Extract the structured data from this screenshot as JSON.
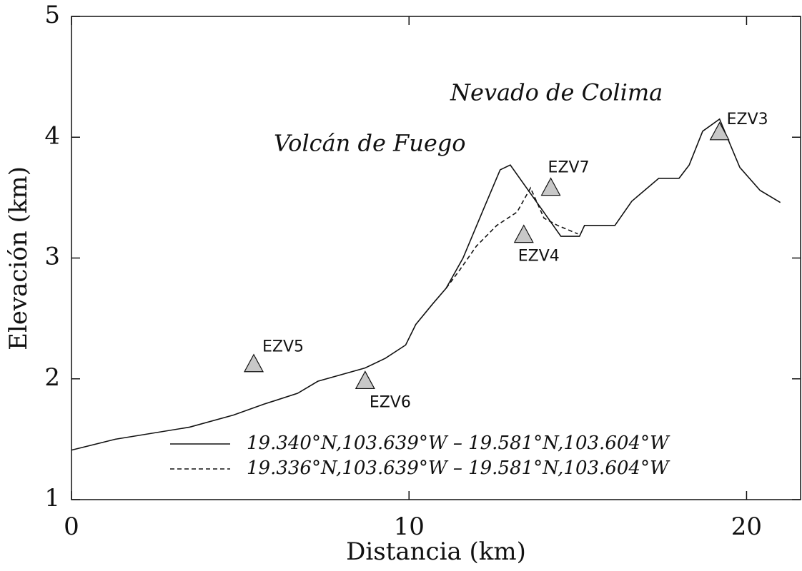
{
  "chart_data": {
    "type": "line",
    "xlabel": "Distancia (km)",
    "ylabel": "Elevación (km)",
    "xlim": [
      0,
      21.6
    ],
    "ylim": [
      1,
      5
    ],
    "xticks": [
      0,
      10,
      20
    ],
    "yticks": [
      1,
      2,
      3,
      4,
      5
    ],
    "annotations": [
      "Nevado de Colima",
      "Volcán de Fuego"
    ],
    "legend": "lower right",
    "series": [
      {
        "name": "19.340°N,103.639°W  –  19.581°N,103.604°W",
        "color": "#111111",
        "dash": "solid",
        "x": [
          0,
          1.3,
          3.5,
          4.8,
          5.7,
          6.7,
          7.3,
          8.7,
          9.3,
          9.9,
          10.2,
          10.7,
          11.1,
          11.6,
          12.2,
          12.7,
          13.0,
          14.5,
          15.05,
          15.2,
          16.1,
          16.6,
          17.4,
          18.0,
          18.3,
          18.7,
          19.2,
          19.8,
          20.4,
          21.0
        ],
        "values": [
          1.41,
          1.5,
          1.6,
          1.7,
          1.79,
          1.88,
          1.98,
          2.09,
          2.17,
          2.28,
          2.45,
          2.62,
          2.75,
          3.0,
          3.4,
          3.73,
          3.77,
          3.18,
          3.18,
          3.27,
          3.27,
          3.47,
          3.66,
          3.66,
          3.77,
          4.05,
          4.15,
          3.75,
          3.56,
          3.46
        ]
      },
      {
        "name": "19.336°N,103.639°W  –  19.581°N,103.604°W",
        "color": "#111111",
        "dash": "dashed",
        "x": [
          11.1,
          11.5,
          12.0,
          12.6,
          13.2,
          13.6,
          14.0,
          14.4,
          15.0
        ],
        "values": [
          2.75,
          2.9,
          3.1,
          3.27,
          3.38,
          3.58,
          3.33,
          3.27,
          3.2
        ]
      }
    ],
    "stations": {
      "names": [
        "EZV5",
        "EZV6",
        "EZV4",
        "EZV7",
        "EZV3"
      ],
      "x": [
        5.4,
        8.7,
        13.4,
        14.2,
        19.2
      ],
      "values": [
        2.13,
        1.99,
        3.2,
        3.59,
        4.05
      ],
      "color": "#c8c8c8"
    }
  }
}
